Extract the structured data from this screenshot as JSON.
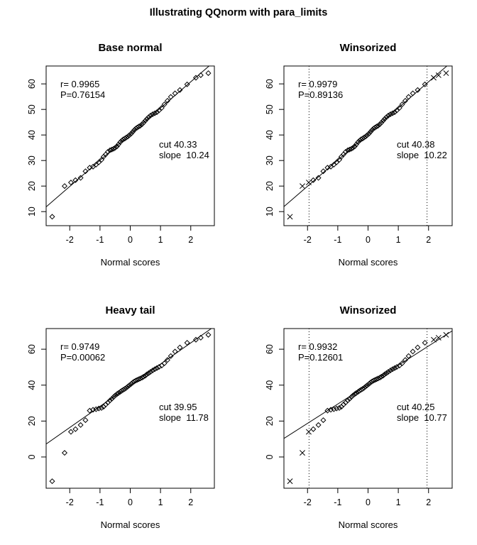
{
  "title": "Illustrating QQnorm with para_limits",
  "colors": {
    "foreground": "#000000",
    "background": "#ffffff"
  },
  "chart_data": {
    "type": "scatter",
    "layout": "2x2 qqnorm panels",
    "datasets": {
      "base_normal": [
        [
          -2.58,
          8.0
        ],
        [
          -2.17,
          20.0
        ],
        [
          -1.96,
          21.4
        ],
        [
          -1.81,
          22.3
        ],
        [
          -1.64,
          23.2
        ],
        [
          -1.48,
          25.8
        ],
        [
          -1.34,
          27.2
        ],
        [
          -1.23,
          27.6
        ],
        [
          -1.13,
          28.4
        ],
        [
          -1.04,
          29.3
        ],
        [
          -0.95,
          30.3
        ],
        [
          -0.88,
          31.5
        ],
        [
          -0.81,
          32.4
        ],
        [
          -0.74,
          33.4
        ],
        [
          -0.67,
          34.0
        ],
        [
          -0.61,
          34.3
        ],
        [
          -0.55,
          34.6
        ],
        [
          -0.5,
          35.0
        ],
        [
          -0.44,
          35.5
        ],
        [
          -0.39,
          36.3
        ],
        [
          -0.33,
          37.2
        ],
        [
          -0.28,
          37.8
        ],
        [
          -0.23,
          38.3
        ],
        [
          -0.18,
          38.6
        ],
        [
          -0.13,
          39.0
        ],
        [
          -0.08,
          39.4
        ],
        [
          -0.03,
          39.9
        ],
        [
          0.03,
          40.5
        ],
        [
          0.08,
          41.2
        ],
        [
          0.13,
          41.9
        ],
        [
          0.18,
          42.5
        ],
        [
          0.23,
          42.9
        ],
        [
          0.28,
          43.3
        ],
        [
          0.33,
          43.6
        ],
        [
          0.39,
          44.2
        ],
        [
          0.44,
          44.8
        ],
        [
          0.5,
          45.6
        ],
        [
          0.55,
          46.3
        ],
        [
          0.61,
          47.0
        ],
        [
          0.67,
          47.6
        ],
        [
          0.74,
          48.1
        ],
        [
          0.81,
          48.5
        ],
        [
          0.88,
          48.9
        ],
        [
          0.95,
          49.6
        ],
        [
          1.04,
          50.6
        ],
        [
          1.13,
          52.0
        ],
        [
          1.23,
          53.4
        ],
        [
          1.34,
          54.9
        ],
        [
          1.48,
          56.3
        ],
        [
          1.64,
          57.6
        ],
        [
          1.88,
          59.8
        ],
        [
          2.17,
          62.4
        ],
        [
          2.33,
          63.4
        ],
        [
          2.58,
          64.2
        ]
      ],
      "heavy_tail": [
        [
          -2.58,
          -13.5
        ],
        [
          -2.17,
          2.3
        ],
        [
          -1.96,
          14.0
        ],
        [
          -1.81,
          15.5
        ],
        [
          -1.64,
          17.8
        ],
        [
          -1.48,
          20.5
        ],
        [
          -1.34,
          25.8
        ],
        [
          -1.23,
          26.3
        ],
        [
          -1.13,
          26.6
        ],
        [
          -1.04,
          27.0
        ],
        [
          -0.95,
          27.3
        ],
        [
          -0.88,
          28.0
        ],
        [
          -0.81,
          29.2
        ],
        [
          -0.74,
          30.3
        ],
        [
          -0.67,
          31.5
        ],
        [
          -0.61,
          32.4
        ],
        [
          -0.55,
          33.4
        ],
        [
          -0.5,
          34.2
        ],
        [
          -0.44,
          35.0
        ],
        [
          -0.39,
          35.6
        ],
        [
          -0.33,
          36.3
        ],
        [
          -0.28,
          36.9
        ],
        [
          -0.23,
          37.4
        ],
        [
          -0.18,
          37.9
        ],
        [
          -0.13,
          38.5
        ],
        [
          -0.08,
          39.2
        ],
        [
          -0.03,
          39.9
        ],
        [
          0.03,
          40.7
        ],
        [
          0.08,
          41.4
        ],
        [
          0.13,
          42.0
        ],
        [
          0.18,
          42.5
        ],
        [
          0.23,
          42.9
        ],
        [
          0.28,
          43.3
        ],
        [
          0.33,
          43.7
        ],
        [
          0.39,
          44.2
        ],
        [
          0.44,
          44.7
        ],
        [
          0.5,
          45.3
        ],
        [
          0.55,
          46.0
        ],
        [
          0.61,
          46.7
        ],
        [
          0.67,
          47.4
        ],
        [
          0.74,
          48.2
        ],
        [
          0.81,
          48.9
        ],
        [
          0.88,
          49.5
        ],
        [
          0.95,
          50.1
        ],
        [
          1.04,
          50.9
        ],
        [
          1.13,
          52.2
        ],
        [
          1.23,
          54.0
        ],
        [
          1.34,
          56.2
        ],
        [
          1.48,
          58.7
        ],
        [
          1.64,
          61.0
        ],
        [
          1.88,
          63.6
        ],
        [
          2.17,
          65.3
        ],
        [
          2.33,
          66.4
        ],
        [
          2.58,
          68.0
        ]
      ]
    },
    "panels": [
      {
        "title": "Base normal",
        "data": "base_normal",
        "xlabel": "Normal scores",
        "ylabel": "",
        "x_ticks": [
          -2,
          -1,
          0,
          1,
          2
        ],
        "y_ticks": [
          10,
          20,
          30,
          40,
          50,
          60
        ],
        "xlim": [
          -2.78,
          2.78
        ],
        "ylim": [
          4.5,
          67.0
        ],
        "stats": {
          "r_label": "r= 0.9965",
          "p_label": "P=0.76154"
        },
        "fit": {
          "cut": 40.33,
          "slope": 10.24,
          "cut_label": "cut 40.33",
          "slope_label": "slope  10.24"
        },
        "limits": null,
        "marker_inside": "diamond",
        "marker_outside": "diamond",
        "grid": false
      },
      {
        "title": "Winsorized",
        "data": "base_normal",
        "xlabel": "Normal scores",
        "ylabel": "",
        "x_ticks": [
          -2,
          -1,
          0,
          1,
          2
        ],
        "y_ticks": [
          10,
          20,
          30,
          40,
          50,
          60
        ],
        "xlim": [
          -2.78,
          2.78
        ],
        "ylim": [
          4.5,
          67.0
        ],
        "stats": {
          "r_label": "r= 0.9979",
          "p_label": "P=0.89136"
        },
        "fit": {
          "cut": 40.38,
          "slope": 10.22,
          "cut_label": "cut 40.38",
          "slope_label": "slope  10.22"
        },
        "limits": [
          -1.95,
          1.95
        ],
        "marker_inside": "diamond",
        "marker_outside": "x",
        "grid": false
      },
      {
        "title": "Heavy tail",
        "data": "heavy_tail",
        "xlabel": "Normal scores",
        "ylabel": "",
        "x_ticks": [
          -2,
          -1,
          0,
          1,
          2
        ],
        "y_ticks": [
          0,
          20,
          40,
          60
        ],
        "xlim": [
          -2.78,
          2.78
        ],
        "ylim": [
          -17.4,
          71.5
        ],
        "stats": {
          "r_label": "r= 0.9749",
          "p_label": "P=0.00062"
        },
        "fit": {
          "cut": 39.95,
          "slope": 11.78,
          "cut_label": "cut 39.95",
          "slope_label": "slope  11.78"
        },
        "limits": null,
        "marker_inside": "diamond",
        "marker_outside": "diamond",
        "grid": false
      },
      {
        "title": "Winsorized",
        "data": "heavy_tail",
        "xlabel": "Normal scores",
        "ylabel": "",
        "x_ticks": [
          -2,
          -1,
          0,
          1,
          2
        ],
        "y_ticks": [
          0,
          20,
          40,
          60
        ],
        "xlim": [
          -2.78,
          2.78
        ],
        "ylim": [
          -17.4,
          71.5
        ],
        "stats": {
          "r_label": "r= 0.9932",
          "p_label": "P=0.12601"
        },
        "fit": {
          "cut": 40.25,
          "slope": 10.77,
          "cut_label": "cut 40.25",
          "slope_label": "slope  10.77"
        },
        "limits": [
          -1.95,
          1.95
        ],
        "marker_inside": "diamond",
        "marker_outside": "x",
        "grid": false
      }
    ]
  }
}
